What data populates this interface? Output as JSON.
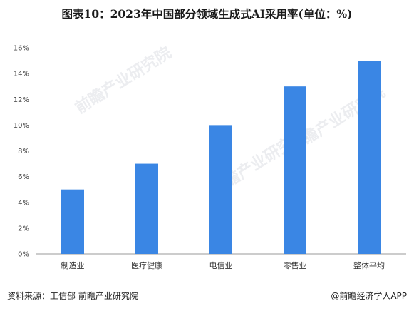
{
  "title": "图表10：2023年中国部分领域生成式AI采用率(单位：%)",
  "source": "资料来源：工信部 前瞻产业研究院",
  "brand": "@前瞻经济学人APP",
  "watermark": "前瞻产业研究院",
  "colors": {
    "bar": "#3a86e4",
    "axis": "#999999",
    "text": "#333333"
  },
  "chart_data": {
    "type": "bar",
    "title": "图表10：2023年中国部分领域生成式AI采用率(单位：%)",
    "xlabel": "",
    "ylabel": "",
    "categories": [
      "制造业",
      "医疗健康",
      "电信业",
      "零售业",
      "整体平均"
    ],
    "values": [
      5,
      7,
      10,
      13,
      15
    ],
    "ylim": [
      0,
      16
    ],
    "yticks": [
      0,
      2,
      4,
      6,
      8,
      10,
      12,
      14,
      16
    ],
    "ytick_format": "{v}%",
    "grid": false,
    "legend": "none"
  }
}
